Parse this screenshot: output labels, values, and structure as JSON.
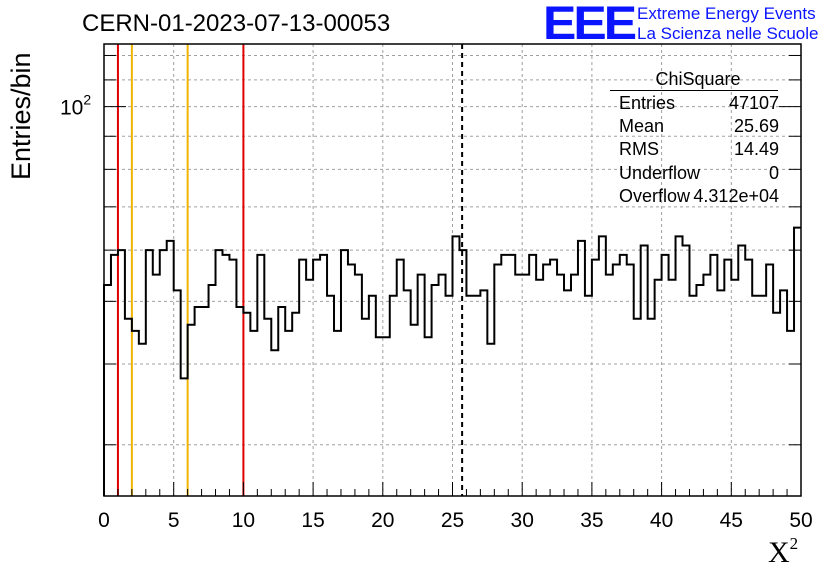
{
  "header": {
    "title": "CERN-01-2023-07-13-00053",
    "logo_text": "EEE",
    "logo_line1": "Extreme Energy Events",
    "logo_line2": "La Scienza nelle Scuole",
    "logo_color": "#0a14ff"
  },
  "stats_box": {
    "title": "ChiSquare",
    "rows": [
      {
        "label": "Entries",
        "value": "47107"
      },
      {
        "label": "Mean",
        "value": "25.69"
      },
      {
        "label": "RMS",
        "value": "14.49"
      },
      {
        "label": "Underflow",
        "value": "0"
      },
      {
        "label": "Overflow",
        "value": "4.312e+04"
      }
    ]
  },
  "chart_data": {
    "type": "histogram",
    "title": "CERN-01-2023-07-13-00053",
    "xlabel": "X",
    "xlabel_superscript": "2",
    "ylabel": "Entries/bin",
    "xlim": [
      0,
      50
    ],
    "ylim": [
      25,
      125
    ],
    "yscale": "log",
    "grid": true,
    "x_ticks": [
      "0",
      "5",
      "10",
      "15",
      "20",
      "25",
      "30",
      "35",
      "40",
      "45",
      "50"
    ],
    "y_tick_label": {
      "value": 100,
      "base": "10",
      "exponent": "2"
    },
    "bin_width": 0.5,
    "bin_values": [
      53,
      59,
      60,
      47,
      45,
      43,
      60,
      55,
      60,
      62,
      52,
      38,
      46,
      49,
      49,
      53,
      60,
      59,
      58,
      49,
      48,
      45,
      59,
      47,
      42,
      49,
      45,
      48,
      58,
      54,
      58,
      59,
      51,
      45,
      60,
      57,
      55,
      47,
      51,
      44,
      44,
      51,
      58,
      52,
      46,
      55,
      44,
      53,
      55,
      51,
      63,
      60,
      51,
      51,
      52,
      43,
      57,
      59,
      59,
      55,
      55,
      59,
      54,
      57,
      58,
      55,
      52,
      55,
      62,
      51,
      58,
      63,
      55,
      57,
      59,
      57,
      47,
      61,
      47,
      54,
      59,
      54,
      63,
      61,
      51,
      53,
      55,
      59,
      52,
      58,
      54,
      61,
      58,
      51,
      51,
      57,
      48,
      52,
      45,
      65
    ],
    "line_color": "#000000",
    "annotations": [
      {
        "x": 1,
        "color": "#e00000",
        "style": "solid"
      },
      {
        "x": 2,
        "color": "#f0b400",
        "style": "solid"
      },
      {
        "x": 6,
        "color": "#f0b400",
        "style": "solid"
      },
      {
        "x": 10,
        "color": "#e00000",
        "style": "solid"
      },
      {
        "x": 25.69,
        "color": "#000000",
        "style": "dashed"
      }
    ]
  }
}
